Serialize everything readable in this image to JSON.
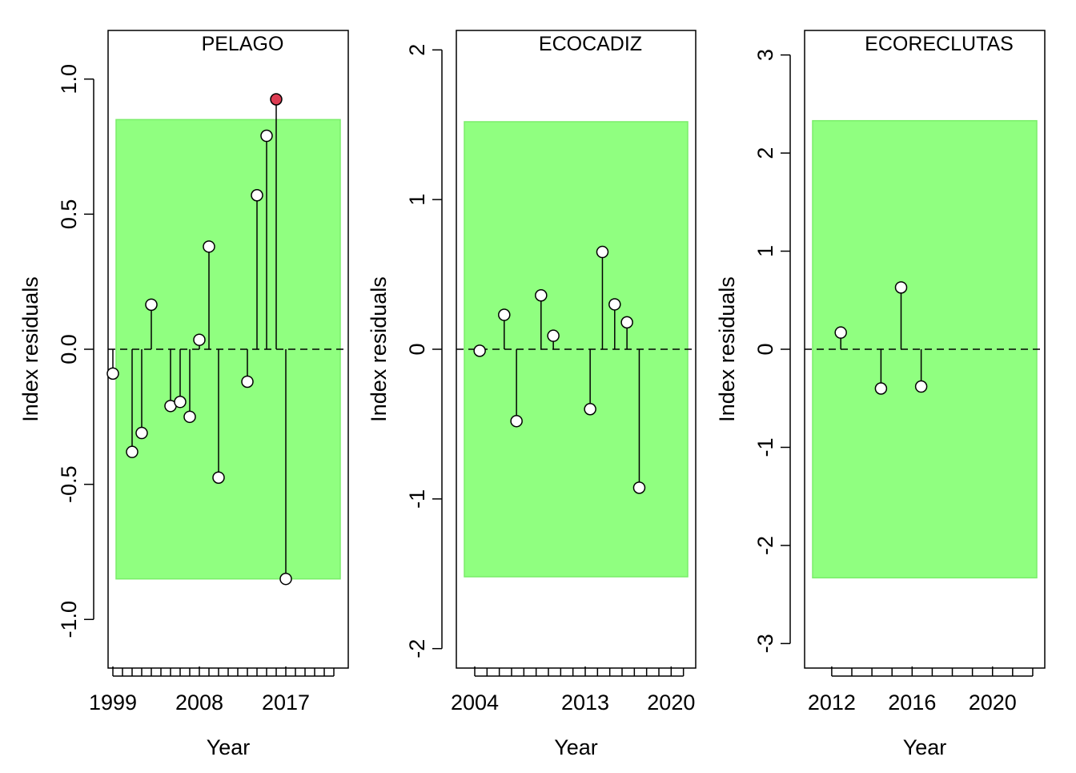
{
  "chart_data": [
    {
      "type": "scatter",
      "title": "PELAGO",
      "xlabel": "Year",
      "ylabel": "Index residuals",
      "xlim": [
        1998.5,
        2023.5
      ],
      "ylim": [
        -1.18,
        1.18
      ],
      "x_major_ticks": [
        1999,
        2008,
        2017
      ],
      "x_minor_ticks": [
        2000,
        2001,
        2002,
        2003,
        2004,
        2005,
        2006,
        2007,
        2009,
        2010,
        2011,
        2012,
        2013,
        2014,
        2015,
        2016,
        2018,
        2019,
        2020,
        2021,
        2022
      ],
      "y_ticks": [
        -1.0,
        -0.5,
        0.0,
        0.5,
        1.0
      ],
      "y_tick_labels": [
        "-1.0",
        "-0.5",
        "0.0",
        "0.5",
        "1.0"
      ],
      "band": [
        -0.85,
        0.85
      ],
      "band_color": "#90ff80",
      "baseline": 0,
      "points": [
        {
          "x": 1999,
          "y": -0.09
        },
        {
          "x": 2001,
          "y": -0.38
        },
        {
          "x": 2002,
          "y": -0.31
        },
        {
          "x": 2003,
          "y": 0.165
        },
        {
          "x": 2005,
          "y": -0.21
        },
        {
          "x": 2006,
          "y": -0.195
        },
        {
          "x": 2007,
          "y": -0.25
        },
        {
          "x": 2008,
          "y": 0.035
        },
        {
          "x": 2009,
          "y": 0.38
        },
        {
          "x": 2010,
          "y": -0.475
        },
        {
          "x": 2013,
          "y": -0.12
        },
        {
          "x": 2014,
          "y": 0.57
        },
        {
          "x": 2015,
          "y": 0.79
        },
        {
          "x": 2016,
          "y": 0.925,
          "highlight": true
        },
        {
          "x": 2017,
          "y": -0.85
        }
      ],
      "marker_fill": "#ffffff",
      "highlight_fill": "#dc3c52"
    },
    {
      "type": "scatter",
      "title": "ECOCADIZ",
      "xlabel": "Year",
      "ylabel": "Index residuals",
      "xlim": [
        2002.5,
        2022.0
      ],
      "ylim": [
        -2.13,
        2.13
      ],
      "x_major_ticks": [
        2004,
        2013,
        2020
      ],
      "x_minor_ticks": [
        2005,
        2006,
        2007,
        2008,
        2009,
        2010,
        2011,
        2012,
        2014,
        2015,
        2016,
        2017,
        2018,
        2019,
        2021
      ],
      "y_ticks": [
        -2,
        -1,
        0,
        1,
        2
      ],
      "y_tick_labels": [
        "-2",
        "-1",
        "0",
        "1",
        "2"
      ],
      "band": [
        -1.52,
        1.52
      ],
      "band_color": "#90ff80",
      "baseline": 0,
      "points": [
        {
          "x": 2004.4,
          "y": -0.01
        },
        {
          "x": 2006.4,
          "y": 0.23
        },
        {
          "x": 2007.4,
          "y": -0.48
        },
        {
          "x": 2009.4,
          "y": 0.36
        },
        {
          "x": 2010.4,
          "y": 0.09
        },
        {
          "x": 2013.4,
          "y": -0.4
        },
        {
          "x": 2014.4,
          "y": 0.65
        },
        {
          "x": 2015.4,
          "y": 0.3
        },
        {
          "x": 2016.4,
          "y": 0.18
        },
        {
          "x": 2017.4,
          "y": -0.925
        }
      ],
      "marker_fill": "#ffffff"
    },
    {
      "type": "scatter",
      "title": "ECORECLUTAS",
      "xlabel": "Year",
      "ylabel": "Index residuals",
      "xlim": [
        2010.65,
        2022.6
      ],
      "ylim": [
        -3.25,
        3.25
      ],
      "x_major_ticks": [
        2012,
        2016,
        2020
      ],
      "x_minor_ticks": [
        2013,
        2014,
        2015,
        2017,
        2018,
        2019,
        2021,
        2022
      ],
      "y_ticks": [
        -3,
        -2,
        -1,
        0,
        1,
        2,
        3
      ],
      "y_tick_labels": [
        "-3",
        "-2",
        "-1",
        "0",
        "1",
        "2",
        "3"
      ],
      "band": [
        -2.33,
        2.33
      ],
      "band_color": "#90ff80",
      "baseline": 0,
      "points": [
        {
          "x": 2012.45,
          "y": 0.17
        },
        {
          "x": 2014.45,
          "y": -0.4
        },
        {
          "x": 2015.45,
          "y": 0.63
        },
        {
          "x": 2016.45,
          "y": -0.38
        }
      ],
      "marker_fill": "#ffffff"
    }
  ]
}
